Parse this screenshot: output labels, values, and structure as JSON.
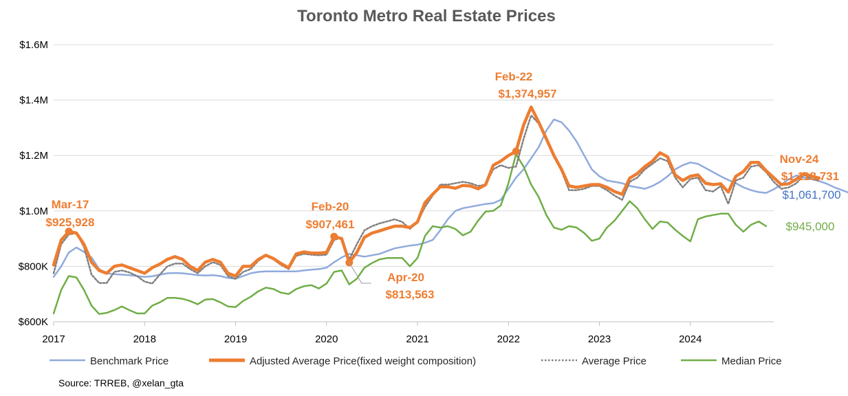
{
  "colors": {
    "benchmark": "#8FAADC",
    "adjusted": "#ED7D31",
    "average": "#7F7F7F",
    "median": "#70AD47",
    "grid": "#D9D9D9",
    "annotation_orange": "#ED7D31",
    "label_blue": "#4472C4",
    "label_green": "#70AD47"
  },
  "source": "Source: TRREB, @xelan_gta",
  "chart_data": {
    "type": "line",
    "title": "Toronto Metro Real Estate Prices",
    "xlabel": "",
    "ylabel": "",
    "ylim": [
      600000,
      1600000
    ],
    "y_ticks": [
      {
        "value": 600000,
        "label": "$600K"
      },
      {
        "value": 800000,
        "label": "$800K"
      },
      {
        "value": 1000000,
        "label": "$1.0M"
      },
      {
        "value": 1200000,
        "label": "$1.2M"
      },
      {
        "value": 1400000,
        "label": "$1.4M"
      },
      {
        "value": 1600000,
        "label": "$1.6M"
      }
    ],
    "x_ticks": [
      "2017",
      "2018",
      "2019",
      "2020",
      "2021",
      "2022",
      "2023",
      "2024"
    ],
    "x_start": "Jan 2017",
    "x_end": "Nov 2024",
    "grid": true,
    "legend_position": "bottom",
    "series": [
      {
        "name": "Benchmark Price",
        "key": "benchmark",
        "values": [
          762000,
          800000,
          850000,
          868000,
          852000,
          832000,
          790000,
          775000,
          772000,
          770000,
          768000,
          765000,
          762000,
          764000,
          770000,
          775000,
          776000,
          775000,
          772000,
          768000,
          767000,
          768000,
          765000,
          758000,
          755000,
          765000,
          775000,
          780000,
          782000,
          782000,
          782000,
          782000,
          782000,
          785000,
          788000,
          790000,
          795000,
          815000,
          832000,
          845000,
          840000,
          835000,
          840000,
          845000,
          855000,
          865000,
          870000,
          875000,
          878000,
          885000,
          895000,
          930000,
          970000,
          1000000,
          1010000,
          1015000,
          1020000,
          1025000,
          1028000,
          1040000,
          1080000,
          1120000,
          1150000,
          1190000,
          1230000,
          1290000,
          1330000,
          1320000,
          1290000,
          1250000,
          1200000,
          1150000,
          1125000,
          1110000,
          1105000,
          1100000,
          1090000,
          1085000,
          1080000,
          1090000,
          1105000,
          1125000,
          1150000,
          1165000,
          1175000,
          1170000,
          1155000,
          1140000,
          1125000,
          1112000,
          1100000,
          1085000,
          1075000,
          1068000,
          1065000,
          1078000,
          1095000,
          1115000,
          1128000,
          1120000,
          1115000,
          1108000,
          1098000,
          1085000,
          1075000,
          1065000,
          1061700
        ]
      },
      {
        "name": "Adjusted Average Price(fixed weight composition)",
        "key": "adjusted",
        "values": [
          805000,
          895000,
          925928,
          920000,
          880000,
          815000,
          785000,
          775000,
          800000,
          805000,
          795000,
          785000,
          775000,
          795000,
          808000,
          825000,
          835000,
          825000,
          800000,
          785000,
          815000,
          825000,
          815000,
          775000,
          765000,
          800000,
          800000,
          825000,
          840000,
          828000,
          810000,
          795000,
          845000,
          852000,
          848000,
          848000,
          850000,
          907461,
          900000,
          813563,
          850000,
          905000,
          920000,
          928000,
          937000,
          945000,
          945000,
          940000,
          960000,
          1030000,
          1060000,
          1087000,
          1087000,
          1082000,
          1092000,
          1090000,
          1080000,
          1095000,
          1165000,
          1180000,
          1200000,
          1215000,
          1310000,
          1374957,
          1320000,
          1260000,
          1200000,
          1150000,
          1090000,
          1085000,
          1090000,
          1095000,
          1095000,
          1085000,
          1070000,
          1060000,
          1118000,
          1135000,
          1160000,
          1180000,
          1210000,
          1195000,
          1130000,
          1110000,
          1125000,
          1130000,
          1100000,
          1095000,
          1098000,
          1068000,
          1125000,
          1142000,
          1175000,
          1175000,
          1145000,
          1120000,
          1095000,
          1098000,
          1115000,
          1135000,
          1125000,
          1118731
        ]
      },
      {
        "name": "Average Price",
        "key": "average",
        "values": [
          775000,
          880000,
          915000,
          920000,
          870000,
          770000,
          740000,
          740000,
          780000,
          785000,
          778000,
          765000,
          745000,
          738000,
          770000,
          800000,
          810000,
          810000,
          790000,
          775000,
          800000,
          815000,
          805000,
          765000,
          755000,
          780000,
          790000,
          820000,
          838000,
          825000,
          805000,
          790000,
          838000,
          845000,
          842000,
          840000,
          842000,
          895000,
          905000,
          825000,
          880000,
          930000,
          945000,
          955000,
          962000,
          970000,
          960000,
          935000,
          960000,
          1015000,
          1055000,
          1095000,
          1095000,
          1100000,
          1105000,
          1100000,
          1090000,
          1095000,
          1150000,
          1165000,
          1155000,
          1160000,
          1260000,
          1345000,
          1315000,
          1260000,
          1195000,
          1145000,
          1075000,
          1075000,
          1080000,
          1090000,
          1090000,
          1075000,
          1055000,
          1040000,
          1105000,
          1120000,
          1150000,
          1170000,
          1190000,
          1180000,
          1120000,
          1085000,
          1115000,
          1120000,
          1075000,
          1070000,
          1090000,
          1025000,
          1110000,
          1120000,
          1160000,
          1165000,
          1140000,
          1105000,
          1080000,
          1085000,
          1100000,
          1130000,
          1115000,
          1110000
        ]
      },
      {
        "name": "Median Price",
        "key": "median",
        "values": [
          630000,
          715000,
          765000,
          760000,
          715000,
          658000,
          628000,
          632000,
          642000,
          655000,
          642000,
          630000,
          630000,
          658000,
          670000,
          686000,
          686000,
          683000,
          675000,
          663000,
          680000,
          682000,
          670000,
          655000,
          653000,
          675000,
          690000,
          710000,
          723000,
          718000,
          705000,
          700000,
          718000,
          728000,
          732000,
          720000,
          738000,
          780000,
          785000,
          735000,
          755000,
          795000,
          812000,
          825000,
          830000,
          830000,
          830000,
          800000,
          830000,
          910000,
          945000,
          940000,
          945000,
          935000,
          912000,
          925000,
          965000,
          998000,
          1000000,
          1020000,
          1100000,
          1205000,
          1160000,
          1095000,
          1050000,
          985000,
          940000,
          932000,
          945000,
          940000,
          920000,
          892000,
          900000,
          940000,
          965000,
          1000000,
          1035000,
          1010000,
          970000,
          935000,
          962000,
          958000,
          932000,
          910000,
          890000,
          970000,
          980000,
          985000,
          990000,
          990000,
          950000,
          925000,
          950000,
          962000,
          945000
        ]
      }
    ],
    "annotations": [
      {
        "date": "Mar-17",
        "value_label": "$925,928"
      },
      {
        "date": "Feb-20",
        "value_label": "$907,461"
      },
      {
        "date": "Apr-20",
        "value_label": "$813,563"
      },
      {
        "date": "Feb-22",
        "value_label": "$1,374,957"
      },
      {
        "date": "Nov-24",
        "value_label": "$1,118,731"
      }
    ],
    "end_labels": [
      {
        "series": "benchmark",
        "text": "$1,061,700"
      },
      {
        "series": "median",
        "text": "$945,000"
      }
    ]
  }
}
